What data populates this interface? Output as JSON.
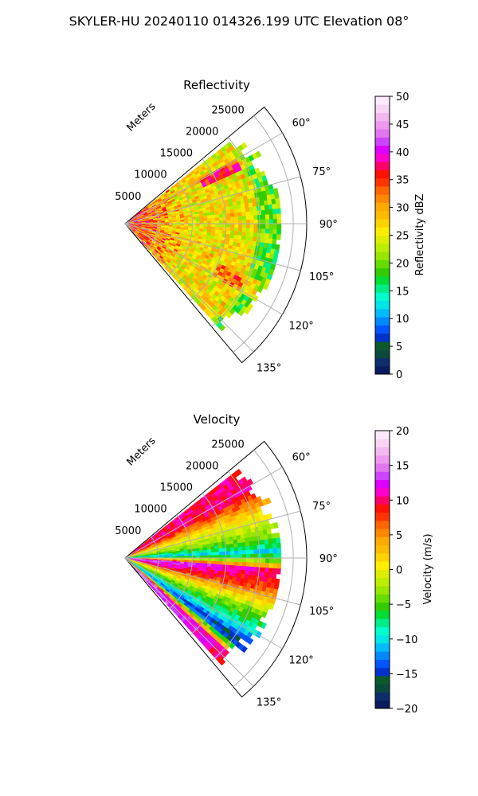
{
  "suptitle": "SKYLER-HU  20240110  014326.199 UTC Elevation 08°",
  "chart_data": [
    {
      "type": "heatmap",
      "projection": "polar",
      "title": "Reflectivity",
      "radial_axis_label": "Meters",
      "radial_ticks": [
        5000,
        10000,
        15000,
        20000,
        25000
      ],
      "radial_tick_labels": [
        "5000",
        "10000",
        "15000",
        "20000",
        "25000"
      ],
      "rlim": [
        0,
        27000
      ],
      "azimuth_range_deg": [
        50,
        140
      ],
      "azimuth_ticks_deg": [
        60,
        75,
        90,
        105,
        120,
        135
      ],
      "azimuth_tick_labels": [
        "60°",
        "75°",
        "90°",
        "105°",
        "120°",
        "135°"
      ],
      "grid": true,
      "colorbar": {
        "label": "Reflectivity dBZ",
        "range": [
          0,
          50
        ],
        "ticks": [
          0,
          5,
          10,
          15,
          20,
          25,
          30,
          35,
          40,
          45,
          50
        ],
        "tick_labels": [
          "0",
          "5",
          "10",
          "15",
          "20",
          "25",
          "30",
          "35",
          "40",
          "45",
          "50"
        ],
        "colors": [
          "#0a1a5e",
          "#0d2e6b",
          "#0a4a3c",
          "#0b5a2c",
          "#0033cc",
          "#0055ff",
          "#0088ff",
          "#00bbff",
          "#00e5e5",
          "#00ffcc",
          "#00ee88",
          "#00dd33",
          "#33cc00",
          "#66dd00",
          "#99e600",
          "#bbee00",
          "#ddee00",
          "#ffee00",
          "#ffd400",
          "#ffbb00",
          "#ffaa00",
          "#ff8800",
          "#ff6600",
          "#ff3300",
          "#ff1100",
          "#ff0066",
          "#ff00cc",
          "#dd00ff",
          "#cc44ff",
          "#e077f0",
          "#ee99ee",
          "#f3b8f0",
          "#f8d4f5",
          "#fceafb"
        ]
      },
      "field_description_values": {
        "dominant_dbz_range": [
          20,
          38
        ],
        "near_range_core_dbz": 35,
        "far_edge_dbz": 20,
        "max_observed_dbz": 45
      }
    },
    {
      "type": "heatmap",
      "projection": "polar",
      "title": "Velocity",
      "radial_axis_label": "Meters",
      "radial_ticks": [
        5000,
        10000,
        15000,
        20000,
        25000
      ],
      "radial_tick_labels": [
        "5000",
        "10000",
        "15000",
        "20000",
        "25000"
      ],
      "rlim": [
        0,
        27000
      ],
      "azimuth_range_deg": [
        50,
        140
      ],
      "azimuth_ticks_deg": [
        60,
        75,
        90,
        105,
        120,
        135
      ],
      "azimuth_tick_labels": [
        "60°",
        "75°",
        "90°",
        "105°",
        "120°",
        "135°"
      ],
      "grid": true,
      "colorbar": {
        "label": "Velocity (m/s)",
        "range": [
          -20,
          20
        ],
        "ticks": [
          -20,
          -15,
          -10,
          -5,
          0,
          5,
          10,
          15,
          20
        ],
        "tick_labels": [
          "−20",
          "−15",
          "−10",
          "−5",
          "0",
          "5",
          "10",
          "15",
          "20"
        ],
        "colors": [
          "#0a1a5e",
          "#0d2e6b",
          "#0a4a3c",
          "#0b5a2c",
          "#0033cc",
          "#0055ff",
          "#0088ff",
          "#00bbff",
          "#00e5e5",
          "#00ffcc",
          "#00ee88",
          "#00dd33",
          "#33cc00",
          "#66dd00",
          "#99e600",
          "#bbee00",
          "#ddee00",
          "#ffee00",
          "#ffd400",
          "#ffbb00",
          "#ffaa00",
          "#ff8800",
          "#ff6600",
          "#ff3300",
          "#ff1100",
          "#ff0066",
          "#ff00cc",
          "#dd00ff",
          "#cc44ff",
          "#e077f0",
          "#ee99ee",
          "#f3b8f0",
          "#f8d4f5",
          "#fceafb"
        ]
      },
      "bands": [
        {
          "azimuth_deg": 62,
          "velocity_ms": 10
        },
        {
          "azimuth_deg": 72,
          "velocity_ms": 1
        },
        {
          "azimuth_deg": 82,
          "velocity_ms": -4
        },
        {
          "azimuth_deg": 88,
          "velocity_ms": -11
        },
        {
          "azimuth_deg": 95,
          "velocity_ms": 15
        },
        {
          "azimuth_deg": 103,
          "velocity_ms": 11
        },
        {
          "azimuth_deg": 112,
          "velocity_ms": 1
        },
        {
          "azimuth_deg": 120,
          "velocity_ms": -5
        },
        {
          "azimuth_deg": 127,
          "velocity_ms": -12
        },
        {
          "azimuth_deg": 133,
          "velocity_ms": 15
        }
      ]
    }
  ]
}
